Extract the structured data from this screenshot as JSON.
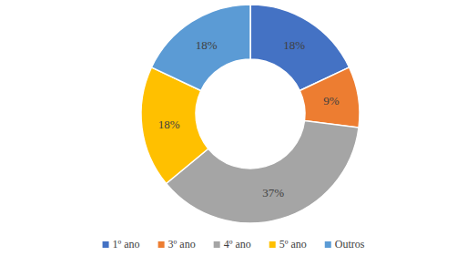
{
  "chart_data": {
    "type": "pie",
    "categories": [
      "1º ano",
      "3º ano",
      "4º ano",
      "5º ano",
      "Outros"
    ],
    "values": [
      18,
      9,
      37,
      18,
      18
    ],
    "value_labels": [
      "18%",
      "9%",
      "37%",
      "18%",
      "18%"
    ],
    "colors": [
      "#4472c4",
      "#ed7d31",
      "#a5a5a5",
      "#ffc000",
      "#5b9bd5"
    ],
    "data_labels": true,
    "legend": "bottom"
  }
}
